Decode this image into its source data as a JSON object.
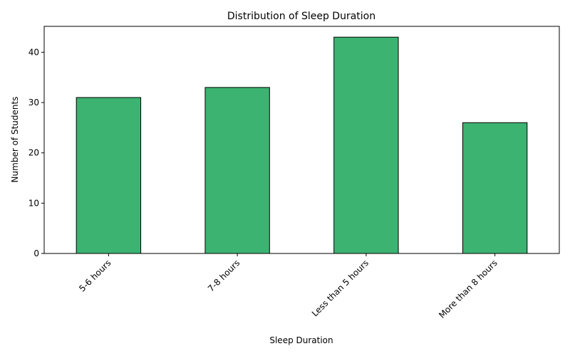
{
  "chart_data": {
    "type": "bar",
    "title": "Distribution of Sleep Duration",
    "xlabel": "Sleep Duration",
    "ylabel": "Number of Students",
    "categories": [
      "5-6 hours",
      "7-8 hours",
      "Less than 5 hours",
      "More than 8 hours"
    ],
    "values": [
      31,
      33,
      43,
      26
    ],
    "ylim": [
      0,
      45.15
    ],
    "yticks": [
      0,
      10,
      20,
      30,
      40
    ],
    "bar_color": "#3cb371",
    "edge_color": "#000000",
    "grid": false,
    "legend": "none"
  }
}
